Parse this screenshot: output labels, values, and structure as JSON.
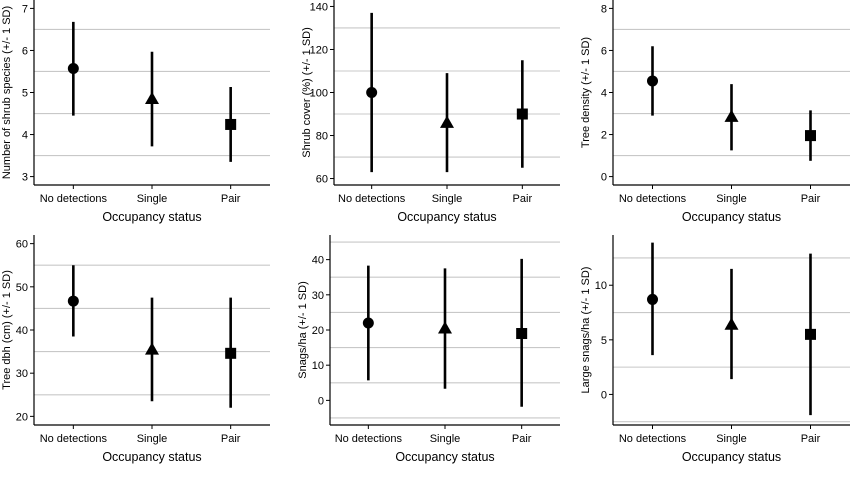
{
  "chart_data": [
    {
      "type": "scatter",
      "ylabel": "Number of shrub species (+/- 1 SD)",
      "xlabel": "Occupancy status",
      "categories": [
        "No detections",
        "Single",
        "Pair"
      ],
      "ylim": [
        2.8,
        7.2
      ],
      "yticks": [
        3,
        4,
        5,
        6,
        7
      ],
      "grid": [
        3.5,
        4.5,
        5.5,
        6.5
      ],
      "values": [
        5.57,
        4.85,
        4.24
      ],
      "lower": [
        4.45,
        3.72,
        3.35
      ],
      "upper": [
        6.68,
        5.97,
        5.13
      ],
      "markers": [
        "circle",
        "triangle",
        "square"
      ]
    },
    {
      "type": "scatter",
      "ylabel": "Shrub cover (%) (+/- 1 SD)",
      "xlabel": "Occupancy status",
      "categories": [
        "No detections",
        "Single",
        "Pair"
      ],
      "ylim": [
        57,
        143
      ],
      "yticks": [
        60,
        80,
        100,
        120,
        140
      ],
      "grid": [
        70,
        90,
        110,
        130
      ],
      "values": [
        100,
        86,
        90
      ],
      "lower": [
        63,
        63,
        65
      ],
      "upper": [
        137,
        109,
        115
      ],
      "markers": [
        "circle",
        "triangle",
        "square"
      ]
    },
    {
      "type": "scatter",
      "ylabel": "Tree density (+/- 1 SD)",
      "xlabel": "Occupancy status",
      "categories": [
        "No detections",
        "Single",
        "Pair"
      ],
      "ylim": [
        -0.4,
        8.4
      ],
      "yticks": [
        0,
        2,
        4,
        6,
        8
      ],
      "grid": [
        1,
        3,
        5,
        7
      ],
      "values": [
        4.55,
        2.85,
        1.95
      ],
      "lower": [
        2.9,
        1.25,
        0.75
      ],
      "upper": [
        6.2,
        4.4,
        3.15
      ],
      "markers": [
        "circle",
        "triangle",
        "square"
      ]
    },
    {
      "type": "scatter",
      "ylabel": "Tree dbh (cm) (+/- 1 SD)",
      "xlabel": "Occupancy status",
      "categories": [
        "No detections",
        "Single",
        "Pair"
      ],
      "ylim": [
        18,
        62
      ],
      "yticks": [
        20,
        30,
        40,
        50,
        60
      ],
      "grid": [
        25,
        35,
        45,
        55
      ],
      "values": [
        46.7,
        35.5,
        34.6
      ],
      "lower": [
        38.5,
        23.5,
        22
      ],
      "upper": [
        55,
        47.5,
        47.5
      ],
      "markers": [
        "circle",
        "triangle",
        "square"
      ]
    },
    {
      "type": "scatter",
      "ylabel": "Snags/ha (+/- 1 SD)",
      "xlabel": "Occupancy status",
      "categories": [
        "No detections",
        "Single",
        "Pair"
      ],
      "ylim": [
        -7,
        47
      ],
      "yticks": [
        0,
        10,
        20,
        30,
        40
      ],
      "grid": [
        -5,
        5,
        15,
        25,
        35,
        45
      ],
      "values": [
        22,
        20.5,
        19
      ],
      "lower": [
        5.7,
        3.3,
        -1.8
      ],
      "upper": [
        38.3,
        37.5,
        40.2
      ],
      "markers": [
        "circle",
        "triangle",
        "square"
      ]
    },
    {
      "type": "scatter",
      "ylabel": "Large snags/ha (+/- 1 SD)",
      "xlabel": "Occupancy status",
      "categories": [
        "No detections",
        "Single",
        "Pair"
      ],
      "ylim": [
        -2.8,
        14.6
      ],
      "yticks": [
        0,
        5,
        10
      ],
      "grid": [
        -2.5,
        2.5,
        7.5,
        12.5
      ],
      "values": [
        8.7,
        6.4,
        5.5
      ],
      "lower": [
        3.6,
        1.4,
        -1.9
      ],
      "upper": [
        13.9,
        11.5,
        12.9
      ],
      "markers": [
        "circle",
        "triangle",
        "square"
      ]
    }
  ]
}
